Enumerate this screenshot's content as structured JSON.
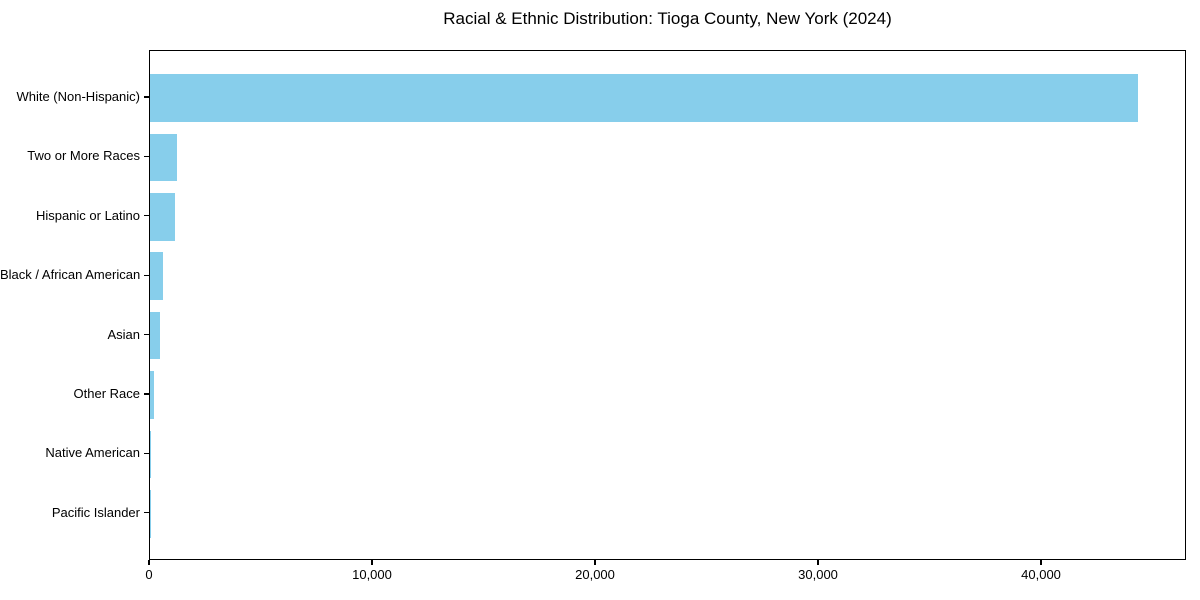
{
  "chart_data": {
    "type": "bar",
    "orientation": "horizontal",
    "title": "Racial & Ethnic Distribution: Tioga County, New York (2024)",
    "xlabel": "",
    "ylabel": "",
    "categories": [
      "White (Non-Hispanic)",
      "Two or More Races",
      "Hispanic or Latino",
      "Black / African American",
      "Asian",
      "Other Race",
      "Native American",
      "Pacific Islander"
    ],
    "values": [
      44300,
      1200,
      1100,
      580,
      450,
      200,
      40,
      10
    ],
    "xlim": [
      0,
      46500
    ],
    "x_ticks": [
      0,
      10000,
      20000,
      30000,
      40000
    ],
    "x_tick_labels": [
      "0",
      "10,000",
      "20,000",
      "30,000",
      "40,000"
    ],
    "bar_color": "#87CEEB",
    "grid": false,
    "legend": null
  }
}
